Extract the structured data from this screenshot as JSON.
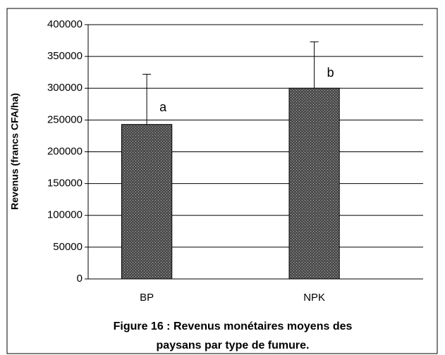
{
  "chart_data": {
    "type": "bar",
    "caption": "Figure 16 : Revenus monétaires moyens des paysans par type de fumure.",
    "ylabel": "Revenus (francs CFA/ha)",
    "categories": [
      "BP",
      "NPK"
    ],
    "values": [
      243000,
      300000
    ],
    "errors": [
      79000,
      73000
    ],
    "annotations": [
      "a",
      "b"
    ],
    "color": "#4d4d4d",
    "ylim": [
      0,
      400000
    ],
    "yticks": [
      0,
      50000,
      100000,
      150000,
      200000,
      250000,
      300000,
      350000,
      400000
    ],
    "grid": true
  }
}
